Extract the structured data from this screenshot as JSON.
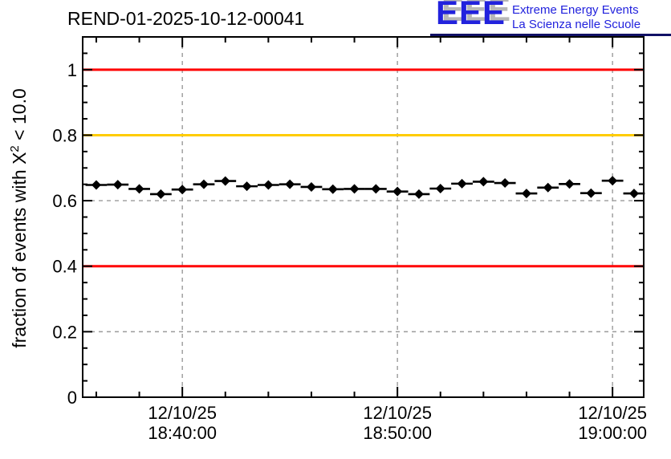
{
  "header": {
    "title": "REND-01-2025-10-12-00041",
    "logo": {
      "acronym": "EEE",
      "line1": "Extreme Energy Events",
      "line2": "La Scienza nelle Scuole",
      "text_color": "#2222dd",
      "underline_color": "#111166"
    }
  },
  "chart_data": {
    "type": "scatter",
    "title": "REND-01-2025-10-12-00041",
    "ylabel_parts": {
      "prefix": "fraction of events with X",
      "sup": "2",
      "suffix": " < 10.0"
    },
    "xlabel": "",
    "date": "12/10/25",
    "ylim": [
      0,
      1.1
    ],
    "yticks": [
      0,
      0.2,
      0.4,
      0.6,
      0.8,
      1
    ],
    "ytick_labels": [
      "0",
      "0.2",
      "0.4",
      "0.6",
      "0.8",
      "1"
    ],
    "y_minor_step": 0.05,
    "x_domain": [
      "18:35:22",
      "19:01:27"
    ],
    "x_major_ticks": [
      "18:40:00",
      "18:50:00",
      "19:00:00"
    ],
    "x_minor_step_minutes": 2,
    "xtick_labels": [
      [
        "12/10/25",
        "18:40:00"
      ],
      [
        "12/10/25",
        "18:50:00"
      ],
      [
        "12/10/25",
        "19:00:00"
      ]
    ],
    "grid": true,
    "grid_color": "#9a9a9a",
    "marker": "diamond",
    "marker_color": "#000000",
    "x_error_seconds": 30,
    "reference_lines": [
      {
        "y": 1.0,
        "color": "#ff0000"
      },
      {
        "y": 0.8,
        "color": "#ffcc00"
      },
      {
        "y": 0.4,
        "color": "#ff0000"
      }
    ],
    "points": [
      {
        "t": "18:36:00",
        "v": 0.648
      },
      {
        "t": "18:37:00",
        "v": 0.649
      },
      {
        "t": "18:38:00",
        "v": 0.636
      },
      {
        "t": "18:39:00",
        "v": 0.62
      },
      {
        "t": "18:40:00",
        "v": 0.634
      },
      {
        "t": "18:41:00",
        "v": 0.65
      },
      {
        "t": "18:42:00",
        "v": 0.66
      },
      {
        "t": "18:43:00",
        "v": 0.644
      },
      {
        "t": "18:44:00",
        "v": 0.648
      },
      {
        "t": "18:45:00",
        "v": 0.65
      },
      {
        "t": "18:46:00",
        "v": 0.642
      },
      {
        "t": "18:47:00",
        "v": 0.635
      },
      {
        "t": "18:48:00",
        "v": 0.636
      },
      {
        "t": "18:49:00",
        "v": 0.636
      },
      {
        "t": "18:50:00",
        "v": 0.628
      },
      {
        "t": "18:51:00",
        "v": 0.62
      },
      {
        "t": "18:52:00",
        "v": 0.637
      },
      {
        "t": "18:53:00",
        "v": 0.652
      },
      {
        "t": "18:54:00",
        "v": 0.658
      },
      {
        "t": "18:55:00",
        "v": 0.654
      },
      {
        "t": "18:56:00",
        "v": 0.622
      },
      {
        "t": "18:57:00",
        "v": 0.64
      },
      {
        "t": "18:58:00",
        "v": 0.651
      },
      {
        "t": "18:59:00",
        "v": 0.623
      },
      {
        "t": "19:00:00",
        "v": 0.661
      },
      {
        "t": "19:01:00",
        "v": 0.622
      }
    ]
  }
}
